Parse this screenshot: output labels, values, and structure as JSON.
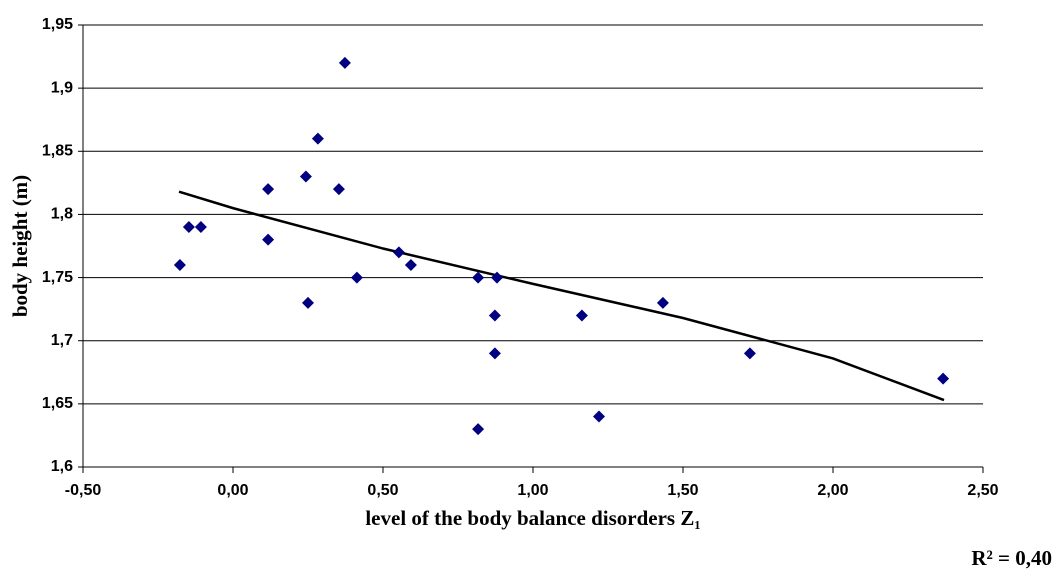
{
  "chart_data": {
    "type": "scatter",
    "x_label": "level of the body balance disorders Z₁",
    "y_label": "body height  (m)",
    "annotation": "R² = 0,40",
    "color": "#000080",
    "grid": true,
    "x": [
      -0.177,
      -0.147,
      -0.107,
      0.117,
      0.117,
      0.243,
      0.25,
      0.283,
      0.353,
      0.373,
      0.413,
      0.553,
      0.593,
      0.817,
      0.817,
      0.88,
      0.873,
      0.873,
      1.163,
      1.22,
      1.433,
      1.723,
      2.367
    ],
    "values": [
      1.76,
      1.79,
      1.79,
      1.82,
      1.78,
      1.83,
      1.73,
      1.86,
      1.82,
      1.92,
      1.75,
      1.77,
      1.76,
      1.75,
      1.63,
      1.75,
      1.72,
      1.69,
      1.72,
      1.64,
      1.73,
      1.69,
      1.67
    ],
    "trendline": {
      "color": "#000000",
      "x": [
        -0.18,
        0,
        0.5,
        1.0,
        1.5,
        2.0,
        2.37
      ],
      "values": [
        1.818,
        1.805,
        1.773,
        1.745,
        1.718,
        1.686,
        1.653
      ]
    },
    "xlim": [
      -0.5,
      2.5
    ],
    "xticks": [
      {
        "value": -0.5,
        "label": "-0,50"
      },
      {
        "value": 0,
        "label": "0,00"
      },
      {
        "value": 0.5,
        "label": "0,50"
      },
      {
        "value": 1,
        "label": "1,00"
      },
      {
        "value": 1.5,
        "label": "1,50"
      },
      {
        "value": 2,
        "label": "2,00"
      },
      {
        "value": 2.5,
        "label": "2,50"
      }
    ],
    "ylim": [
      1.6,
      1.95
    ],
    "yticks": [
      {
        "value": 1.6,
        "label": "1,6"
      },
      {
        "value": 1.65,
        "label": "1,65"
      },
      {
        "value": 1.7,
        "label": "1,7"
      },
      {
        "value": 1.75,
        "label": "1,75"
      },
      {
        "value": 1.8,
        "label": "1,8"
      },
      {
        "value": 1.85,
        "label": "1,85"
      },
      {
        "value": 1.9,
        "label": "1,9"
      },
      {
        "value": 1.95,
        "label": "1,95"
      }
    ]
  }
}
